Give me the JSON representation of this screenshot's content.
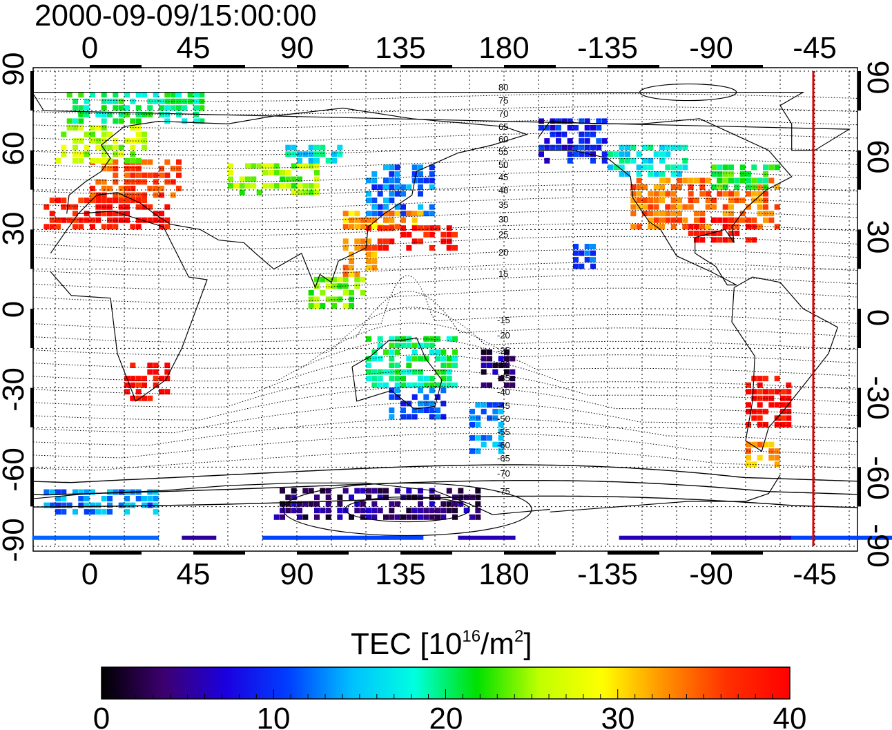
{
  "timestamp": "2000-09-09/15:00:00",
  "top_lon_labels": [
    "0",
    "45",
    "90",
    "135",
    "180",
    "-135",
    "-90",
    "-45"
  ],
  "bottom_lon_labels": [
    "0",
    "45",
    "90",
    "135",
    "180",
    "-135",
    "-90",
    "-45"
  ],
  "left_lat_labels": [
    "90",
    "60",
    "30",
    "0",
    "-30",
    "-60",
    "-90"
  ],
  "right_lat_labels": [
    "90",
    "60",
    "30",
    "0",
    "-30",
    "-60",
    "-90"
  ],
  "contour_labels_north": [
    "80",
    "75",
    "70",
    "65",
    "60",
    "55",
    "50",
    "45",
    "40",
    "35",
    "30",
    "25",
    "20",
    "15"
  ],
  "contour_labels_south": [
    "-15",
    "-20",
    "-25",
    "-30",
    "-35",
    "-40",
    "-45",
    "-50",
    "-55",
    "-60",
    "-65",
    "-70",
    "-75"
  ],
  "colorbar": {
    "title_main": "TEC  [10",
    "title_sup": "16",
    "title_mid": "/m",
    "title_sup2": "2",
    "title_end": "]",
    "tick_labels": [
      "0",
      "10",
      "20",
      "30",
      "40"
    ],
    "range": [
      0,
      40
    ],
    "stops": [
      "#000000",
      "#3d0070",
      "#1a00e0",
      "#0040ff",
      "#00c0ff",
      "#00ffe0",
      "#00e000",
      "#c0ff00",
      "#ffff00",
      "#ff9000",
      "#ff3000",
      "#ff0000"
    ]
  },
  "solar_meridian_color": "#e00000",
  "tec_regions": [
    {
      "lon0": -20,
      "lon1": 10,
      "lat0": 30,
      "lat1": 42,
      "tec": 38
    },
    {
      "lon0": 0,
      "lon1": 40,
      "lat0": 42,
      "lat1": 55,
      "tec": 36
    },
    {
      "lon0": 5,
      "lon1": 35,
      "lat0": 30,
      "lat1": 42,
      "tec": 39
    },
    {
      "lon0": -15,
      "lon1": 25,
      "lat0": 55,
      "lat1": 68,
      "tec": 26
    },
    {
      "lon0": -10,
      "lon1": 50,
      "lat0": 70,
      "lat1": 82,
      "tec": 20
    },
    {
      "lon0": 60,
      "lon1": 100,
      "lat0": 43,
      "lat1": 55,
      "tec": 25
    },
    {
      "lon0": 85,
      "lon1": 110,
      "lat0": 55,
      "lat1": 62,
      "tec": 17
    },
    {
      "lon0": 120,
      "lon1": 150,
      "lat0": 35,
      "lat1": 55,
      "tec": 12
    },
    {
      "lon0": 110,
      "lon1": 145,
      "lat0": 30,
      "lat1": 36,
      "tec": 32
    },
    {
      "lon0": 120,
      "lon1": 160,
      "lat0": 22,
      "lat1": 30,
      "tec": 39
    },
    {
      "lon0": 110,
      "lon1": 125,
      "lat0": 12,
      "lat1": 25,
      "tec": 33
    },
    {
      "lon0": 95,
      "lon1": 120,
      "lat0": 0,
      "lat1": 12,
      "tec": 24
    },
    {
      "lon0": 120,
      "lon1": 160,
      "lat0": -30,
      "lat1": -10,
      "tec": 20
    },
    {
      "lon0": 130,
      "lon1": 155,
      "lat0": -42,
      "lat1": -30,
      "tec": 11
    },
    {
      "lon0": 165,
      "lon1": 180,
      "lat0": -55,
      "lat1": -35,
      "tec": 13
    },
    {
      "lon0": 170,
      "lon1": 185,
      "lat0": -30,
      "lat1": -15,
      "tec": 4
    },
    {
      "lon0": -165,
      "lon1": -135,
      "lat0": 55,
      "lat1": 72,
      "tec": 9
    },
    {
      "lon0": -135,
      "lon1": -100,
      "lat0": 50,
      "lat1": 62,
      "tec": 17
    },
    {
      "lon0": -125,
      "lon1": -60,
      "lat0": 30,
      "lat1": 48,
      "tec": 34
    },
    {
      "lon0": -100,
      "lon1": -70,
      "lat0": 25,
      "lat1": 35,
      "tec": 39
    },
    {
      "lon0": -90,
      "lon1": -60,
      "lat0": 45,
      "lat1": 55,
      "tec": 22
    },
    {
      "lon0": -150,
      "lon1": -140,
      "lat0": 15,
      "lat1": 25,
      "tec": 11
    },
    {
      "lon0": -75,
      "lon1": -55,
      "lat0": -45,
      "lat1": -25,
      "tec": 39
    },
    {
      "lon0": -75,
      "lon1": -60,
      "lat0": -60,
      "lat1": -50,
      "tec": 33
    },
    {
      "lon0": 15,
      "lon1": 35,
      "lat0": -35,
      "lat1": -22,
      "tec": 39
    },
    {
      "lon0": 80,
      "lon1": 170,
      "lat0": -80,
      "lat1": -68,
      "tec": 4
    },
    {
      "lon0": -20,
      "lon1": 30,
      "lat0": -78,
      "lat1": -70,
      "tec": 13
    }
  ]
}
